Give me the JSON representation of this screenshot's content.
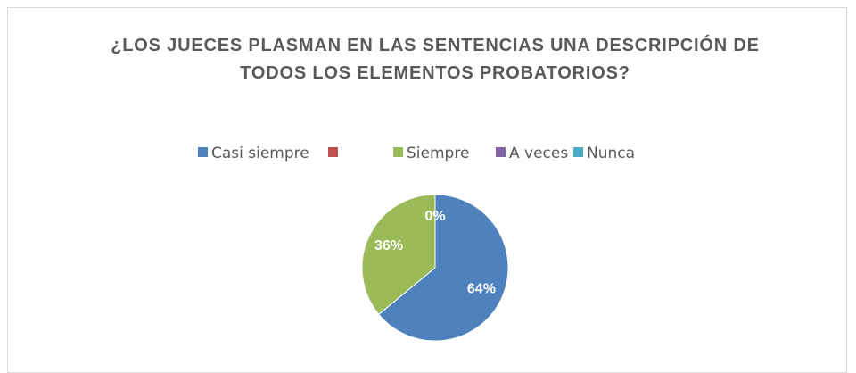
{
  "chart_data": {
    "type": "pie",
    "title": "¿LOS JUECES PLASMAN EN LAS SENTENCIAS UNA DESCRIPCIÓN DE TODOS LOS ELEMENTOS PROBATORIOS?",
    "categories": [
      "Casi siempre",
      null,
      "Siempre",
      "A veces",
      "Nunca"
    ],
    "values": [
      64,
      0,
      36,
      0,
      0
    ],
    "value_labels": [
      "64%",
      null,
      "36%",
      "0%",
      null
    ],
    "colors": [
      "#4f81bd",
      "#c0504d",
      "#9bbb59",
      "#8064a2",
      "#4bacc6"
    ],
    "legend": "top"
  }
}
